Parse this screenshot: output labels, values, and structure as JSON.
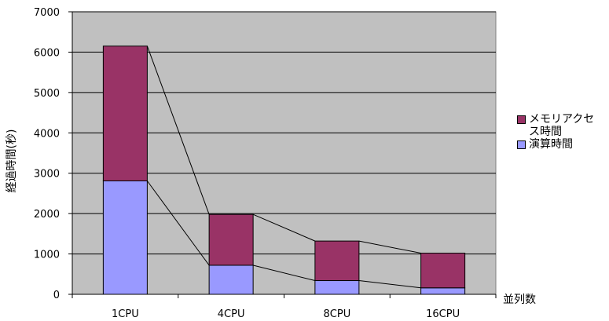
{
  "chart_data": {
    "type": "bar",
    "stacked": true,
    "categories": [
      "1CPU",
      "4CPU",
      "8CPU",
      "16CPU"
    ],
    "series": [
      {
        "name": "演算時間",
        "values": [
          2810,
          720,
          340,
          160
        ],
        "color": "#9999ff"
      },
      {
        "name": "メモリアクセス時間",
        "values": [
          3340,
          1260,
          980,
          860
        ],
        "color": "#993366"
      }
    ],
    "ylim": [
      0,
      7000
    ],
    "yticks": [
      "0",
      "1000",
      "2000",
      "3000",
      "4000",
      "5000",
      "6000",
      "7000"
    ],
    "ylabel": "経過時間(秒)",
    "xlabel": "並列数",
    "grid": true,
    "plot_background": "#c0c0c0",
    "legend_position": "right",
    "connector_lines": true
  }
}
